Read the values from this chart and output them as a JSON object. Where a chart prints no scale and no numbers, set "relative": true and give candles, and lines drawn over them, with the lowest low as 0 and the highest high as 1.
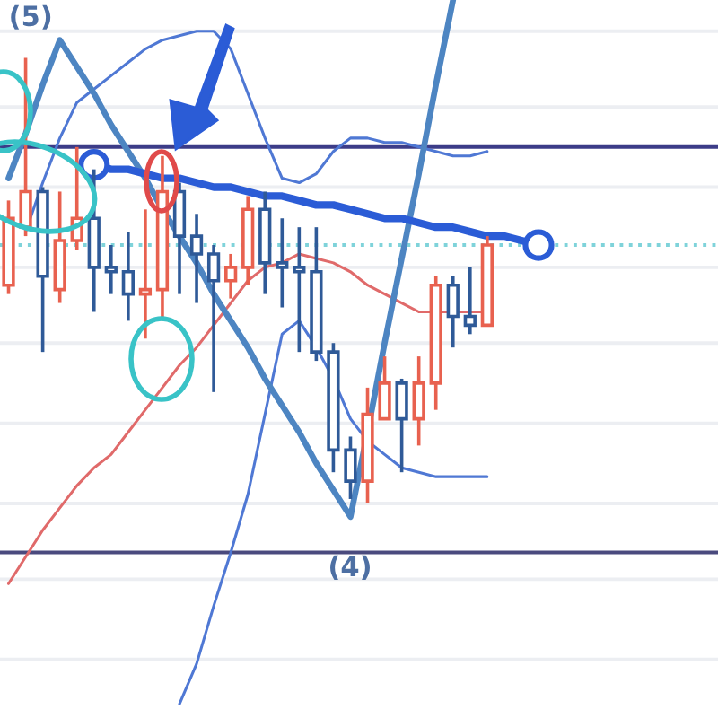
{
  "chart_data": {
    "type": "candlestick",
    "relative": true,
    "categories": [
      null,
      null,
      null,
      null,
      null,
      null,
      null,
      null,
      null,
      null,
      null,
      null,
      null,
      null,
      null,
      null,
      null,
      null,
      null,
      null,
      null,
      null,
      null,
      null,
      null,
      null,
      null,
      null,
      null,
      null,
      null,
      null,
      null,
      null,
      null,
      null,
      null,
      null,
      null,
      null,
      null,
      null
    ],
    "ohlc": [
      [
        0.49,
        0.68,
        0.47,
        0.64
      ],
      [
        0.62,
        1.0,
        0.6,
        0.7
      ],
      [
        0.7,
        0.71,
        0.34,
        0.51
      ],
      [
        0.48,
        0.7,
        0.45,
        0.59
      ],
      [
        0.59,
        0.8,
        0.57,
        0.64
      ],
      [
        0.64,
        0.75,
        0.43,
        0.53
      ],
      [
        0.53,
        0.58,
        0.47,
        0.52
      ],
      [
        0.52,
        0.61,
        0.41,
        0.47
      ],
      [
        0.47,
        0.66,
        0.37,
        0.48
      ],
      [
        0.48,
        0.78,
        0.41,
        0.7
      ],
      [
        0.7,
        0.72,
        0.47,
        0.6
      ],
      [
        0.6,
        0.65,
        0.45,
        0.56
      ],
      [
        0.56,
        0.58,
        0.25,
        0.5
      ],
      [
        0.5,
        0.56,
        0.46,
        0.53
      ],
      [
        0.53,
        0.69,
        0.49,
        0.66
      ],
      [
        0.66,
        0.7,
        0.47,
        0.54
      ],
      [
        0.54,
        0.64,
        0.44,
        0.53
      ],
      [
        0.53,
        0.62,
        0.34,
        0.52
      ],
      [
        0.52,
        0.62,
        0.32,
        0.34
      ],
      [
        0.34,
        0.36,
        0.07,
        0.12
      ],
      [
        0.12,
        0.15,
        0.01,
        0.05
      ],
      [
        0.05,
        0.26,
        0.0,
        0.2
      ],
      [
        0.19,
        0.33,
        0.19,
        0.27
      ],
      [
        0.27,
        0.28,
        0.07,
        0.19
      ],
      [
        0.19,
        0.33,
        0.13,
        0.27
      ],
      [
        0.27,
        0.51,
        0.21,
        0.49
      ],
      [
        0.49,
        0.51,
        0.35,
        0.42
      ],
      [
        0.42,
        0.53,
        0.38,
        0.4
      ],
      [
        0.4,
        0.6,
        0.4,
        0.58
      ],
      null,
      null,
      null,
      null,
      null,
      null,
      null,
      null,
      null,
      null,
      null,
      null,
      null
    ],
    "colors": [
      "#e8614f",
      "#e8614f",
      "#2f5a98",
      "#e8614f",
      "#e8614f",
      "#2f5a98",
      "#2f5a98",
      "#2f5a98",
      "#e8614f",
      "#e8614f",
      "#2f5a98",
      "#2f5a98",
      "#2f5a98",
      "#e8614f",
      "#e8614f",
      "#2f5a98",
      "#2f5a98",
      "#2f5a98",
      "#2f5a98",
      "#2f5a98",
      "#2f5a98",
      "#e8614f",
      "#e8614f",
      "#2f5a98",
      "#e8614f",
      "#e8614f",
      "#2f5a98",
      "#2f5a98",
      "#e8614f",
      null,
      null,
      null,
      null,
      null,
      null,
      null,
      null,
      null,
      null,
      null,
      null,
      null
    ],
    "series": [
      {
        "type": "line",
        "color": "#4f78d4",
        "values": [
          null,
          0.61,
          0.72,
          0.82,
          0.9,
          0.93,
          0.96,
          0.99,
          1.02,
          1.04,
          1.05,
          1.06,
          1.06,
          1.02,
          0.92,
          0.82,
          0.73,
          0.72,
          0.74,
          0.79,
          0.82,
          0.82,
          0.81,
          0.81,
          0.8,
          0.79,
          0.78,
          0.78,
          0.79,
          null,
          null,
          null,
          null,
          null,
          null,
          null,
          null,
          null,
          null,
          null,
          null,
          null
        ]
      },
      {
        "type": "line",
        "color": "#4f78d4",
        "values": [
          null,
          null,
          null,
          null,
          null,
          null,
          null,
          null,
          null,
          null,
          -0.45,
          -0.36,
          -0.23,
          -0.11,
          0.02,
          0.2,
          0.38,
          0.41,
          0.35,
          0.28,
          0.19,
          0.14,
          0.11,
          0.08,
          0.07,
          0.06,
          0.06,
          0.06,
          0.06,
          null,
          null,
          null,
          null,
          null,
          null,
          null,
          null,
          null,
          null,
          null,
          null,
          null
        ]
      },
      {
        "type": "line",
        "color": "#e06a6a",
        "values": [
          -0.18,
          -0.12,
          -0.06,
          -0.01,
          0.04,
          0.08,
          0.11,
          0.16,
          0.21,
          0.26,
          0.31,
          0.35,
          0.4,
          0.45,
          0.5,
          0.53,
          0.54,
          0.56,
          0.55,
          0.54,
          0.52,
          0.49,
          0.47,
          0.45,
          0.43,
          0.43,
          0.43,
          0.43,
          0.43,
          null,
          null,
          null,
          null,
          null,
          null,
          null,
          null,
          null,
          null,
          null,
          null,
          null
        ]
      },
      {
        "type": "line",
        "color": "#4d85c2",
        "values": [
          0.73,
          0.83,
          0.94,
          1.04,
          0.98,
          0.92,
          0.85,
          0.79,
          0.73,
          0.66,
          0.6,
          0.54,
          0.47,
          0.41,
          0.35,
          0.28,
          0.22,
          0.16,
          0.09,
          0.03,
          -0.03,
          0.16,
          0.36,
          0.55,
          0.74,
          0.94,
          1.13,
          null,
          null,
          null,
          null,
          null,
          null,
          null,
          null,
          null,
          null,
          null,
          null,
          null,
          null,
          null
        ]
      },
      {
        "type": "line",
        "color": "#2b5cd6",
        "values": [
          null,
          null,
          null,
          null,
          null,
          0.76,
          0.75,
          0.75,
          0.74,
          0.73,
          0.73,
          0.72,
          0.71,
          0.71,
          0.7,
          0.69,
          0.69,
          0.68,
          0.67,
          0.67,
          0.66,
          0.65,
          0.64,
          0.64,
          0.63,
          0.62,
          0.62,
          0.61,
          0.6,
          0.6,
          0.59,
          0.58,
          null,
          null,
          null,
          null,
          null,
          null,
          null,
          null,
          null,
          null
        ]
      },
      {
        "type": "scatter",
        "color": "#2b5cd6",
        "marker": "circle",
        "values": [
          null,
          null,
          null,
          null,
          null,
          0.76,
          null,
          null,
          null,
          null,
          null,
          null,
          null,
          null,
          null,
          null,
          null,
          null,
          null,
          null,
          null,
          null,
          null,
          null,
          null,
          null,
          null,
          null,
          null,
          null,
          null,
          0.58,
          null,
          null,
          null,
          null,
          null,
          null,
          null,
          null,
          null,
          null
        ]
      }
    ],
    "ref_lines": [
      {
        "axis": "y",
        "value": 1.06,
        "color": "#eceef2"
      },
      {
        "axis": "y",
        "value": 0.89,
        "color": "#eceef2"
      },
      {
        "axis": "y",
        "value": 0.71,
        "color": "#eceef2"
      },
      {
        "axis": "y",
        "value": 0.53,
        "color": "#eceef2"
      },
      {
        "axis": "y",
        "value": 0.36,
        "color": "#eceef2"
      },
      {
        "axis": "y",
        "value": 0.18,
        "color": "#eceef2"
      },
      {
        "axis": "y",
        "value": 0.0,
        "color": "#eceef2"
      },
      {
        "axis": "y",
        "value": -0.17,
        "color": "#eceef2"
      },
      {
        "axis": "y",
        "value": -0.35,
        "color": "#eceef2"
      },
      {
        "axis": "y",
        "value": 0.8,
        "color": "#3c3c88"
      },
      {
        "axis": "y",
        "value": -0.11,
        "color": "#4a4a7e"
      },
      {
        "axis": "y",
        "value": 0.58,
        "color": "#7fd3da",
        "line_style": "dotted"
      }
    ],
    "annotations": [
      "(5)",
      "(4)"
    ]
  }
}
